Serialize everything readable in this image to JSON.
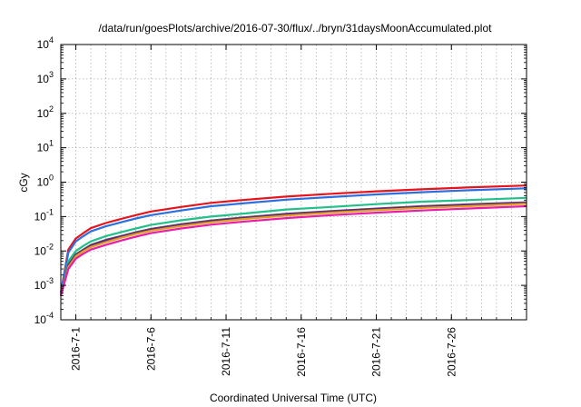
{
  "chart_data": {
    "type": "line",
    "title": "/data/run/goesPlots/archive/2016-07-30/flux/../bryn/31daysMoonAccumulated.plot",
    "xlabel": "Coordinated Universal Time (UTC)",
    "ylabel": "cGy",
    "y_scale": "log",
    "ylim": [
      0.0001,
      10000
    ],
    "y_ticks": [
      {
        "base": "10",
        "exp": "-4",
        "value": 0.0001
      },
      {
        "base": "10",
        "exp": "-3",
        "value": 0.001
      },
      {
        "base": "10",
        "exp": "-2",
        "value": 0.01
      },
      {
        "base": "10",
        "exp": "-1",
        "value": 0.1
      },
      {
        "base": "10",
        "exp": "0",
        "value": 1
      },
      {
        "base": "10",
        "exp": "1",
        "value": 10
      },
      {
        "base": "10",
        "exp": "2",
        "value": 100
      },
      {
        "base": "10",
        "exp": "3",
        "value": 1000
      },
      {
        "base": "10",
        "exp": "4",
        "value": 10000
      }
    ],
    "xlim": [
      "2016-06-30",
      "2016-07-31"
    ],
    "x_ticks": [
      "2016-7-1",
      "2016-7-6",
      "2016-7-11",
      "2016-7-16",
      "2016-7-21",
      "2016-7-26"
    ],
    "x_tick_dates": [
      "2016-07-01",
      "2016-07-06",
      "2016-07-11",
      "2016-07-16",
      "2016-07-21",
      "2016-07-26"
    ],
    "grid": true,
    "series": [
      {
        "color": "#e8141b",
        "x": [
          "2016-06-30",
          "2016-06-30T12:00",
          "2016-07-01",
          "2016-07-01T12:00",
          "2016-07-02",
          "2016-07-03",
          "2016-07-04",
          "2016-07-05",
          "2016-07-06",
          "2016-07-08",
          "2016-07-10",
          "2016-07-12",
          "2016-07-15",
          "2016-07-18",
          "2016-07-21",
          "2016-07-24",
          "2016-07-27",
          "2016-07-31"
        ],
        "values": [
          0.0006,
          0.011,
          0.023,
          0.033,
          0.046,
          0.065,
          0.085,
          0.11,
          0.14,
          0.19,
          0.25,
          0.3,
          0.38,
          0.46,
          0.54,
          0.62,
          0.7,
          0.8
        ]
      },
      {
        "color": "#2b6fe0",
        "x": [
          "2016-06-30",
          "2016-06-30T12:00",
          "2016-07-01",
          "2016-07-01T12:00",
          "2016-07-02",
          "2016-07-03",
          "2016-07-04",
          "2016-07-05",
          "2016-07-06",
          "2016-07-08",
          "2016-07-10",
          "2016-07-12",
          "2016-07-15",
          "2016-07-18",
          "2016-07-21",
          "2016-07-24",
          "2016-07-27",
          "2016-07-31"
        ],
        "values": [
          0.0006,
          0.009,
          0.019,
          0.027,
          0.037,
          0.052,
          0.068,
          0.088,
          0.11,
          0.15,
          0.2,
          0.24,
          0.31,
          0.37,
          0.44,
          0.51,
          0.58,
          0.66
        ]
      },
      {
        "color": "#22c08a",
        "x": [
          "2016-06-30",
          "2016-06-30T12:00",
          "2016-07-01",
          "2016-07-01T12:00",
          "2016-07-02",
          "2016-07-03",
          "2016-07-04",
          "2016-07-05",
          "2016-07-06",
          "2016-07-08",
          "2016-07-10",
          "2016-07-12",
          "2016-07-15",
          "2016-07-18",
          "2016-07-21",
          "2016-07-24",
          "2016-07-27",
          "2016-07-31"
        ],
        "values": [
          0.0005,
          0.005,
          0.01,
          0.014,
          0.019,
          0.027,
          0.035,
          0.045,
          0.057,
          0.078,
          0.1,
          0.12,
          0.16,
          0.19,
          0.23,
          0.27,
          0.3,
          0.35
        ]
      },
      {
        "color": "#555555",
        "x": [
          "2016-06-30",
          "2016-06-30T12:00",
          "2016-07-01",
          "2016-07-01T12:00",
          "2016-07-02",
          "2016-07-03",
          "2016-07-04",
          "2016-07-05",
          "2016-07-06",
          "2016-07-08",
          "2016-07-10",
          "2016-07-12",
          "2016-07-15",
          "2016-07-18",
          "2016-07-21",
          "2016-07-24",
          "2016-07-27",
          "2016-07-31"
        ],
        "values": [
          0.0005,
          0.004,
          0.008,
          0.011,
          0.015,
          0.021,
          0.027,
          0.035,
          0.044,
          0.06,
          0.077,
          0.093,
          0.12,
          0.145,
          0.17,
          0.2,
          0.225,
          0.26
        ]
      },
      {
        "color": "#6b1f8a",
        "x": [
          "2016-06-30",
          "2016-06-30T12:00",
          "2016-07-01",
          "2016-07-01T12:00",
          "2016-07-02",
          "2016-07-03",
          "2016-07-04",
          "2016-07-05",
          "2016-07-06",
          "2016-07-08",
          "2016-07-10",
          "2016-07-12",
          "2016-07-15",
          "2016-07-18",
          "2016-07-21",
          "2016-07-24",
          "2016-07-27",
          "2016-07-31"
        ],
        "values": [
          0.0005,
          0.0037,
          0.0075,
          0.0105,
          0.014,
          0.02,
          0.026,
          0.033,
          0.042,
          0.057,
          0.073,
          0.089,
          0.115,
          0.14,
          0.165,
          0.19,
          0.215,
          0.25
        ]
      },
      {
        "color": "#e0a020",
        "x": [
          "2016-06-30",
          "2016-06-30T12:00",
          "2016-07-01",
          "2016-07-01T12:00",
          "2016-07-02",
          "2016-07-03",
          "2016-07-04",
          "2016-07-05",
          "2016-07-06",
          "2016-07-08",
          "2016-07-10",
          "2016-07-12",
          "2016-07-15",
          "2016-07-18",
          "2016-07-21",
          "2016-07-24",
          "2016-07-27",
          "2016-07-31"
        ],
        "values": [
          0.0005,
          0.0034,
          0.007,
          0.0098,
          0.013,
          0.018,
          0.024,
          0.031,
          0.039,
          0.053,
          0.068,
          0.083,
          0.107,
          0.13,
          0.154,
          0.178,
          0.2,
          0.235
        ]
      },
      {
        "color": "#e81ea8",
        "x": [
          "2016-06-30",
          "2016-06-30T12:00",
          "2016-07-01",
          "2016-07-01T12:00",
          "2016-07-02",
          "2016-07-03",
          "2016-07-04",
          "2016-07-05",
          "2016-07-06",
          "2016-07-08",
          "2016-07-10",
          "2016-07-12",
          "2016-07-15",
          "2016-07-18",
          "2016-07-21",
          "2016-07-24",
          "2016-07-27",
          "2016-07-31"
        ],
        "values": [
          0.0005,
          0.003,
          0.006,
          0.0083,
          0.011,
          0.015,
          0.02,
          0.026,
          0.033,
          0.045,
          0.058,
          0.07,
          0.09,
          0.11,
          0.13,
          0.15,
          0.17,
          0.2
        ]
      }
    ]
  }
}
